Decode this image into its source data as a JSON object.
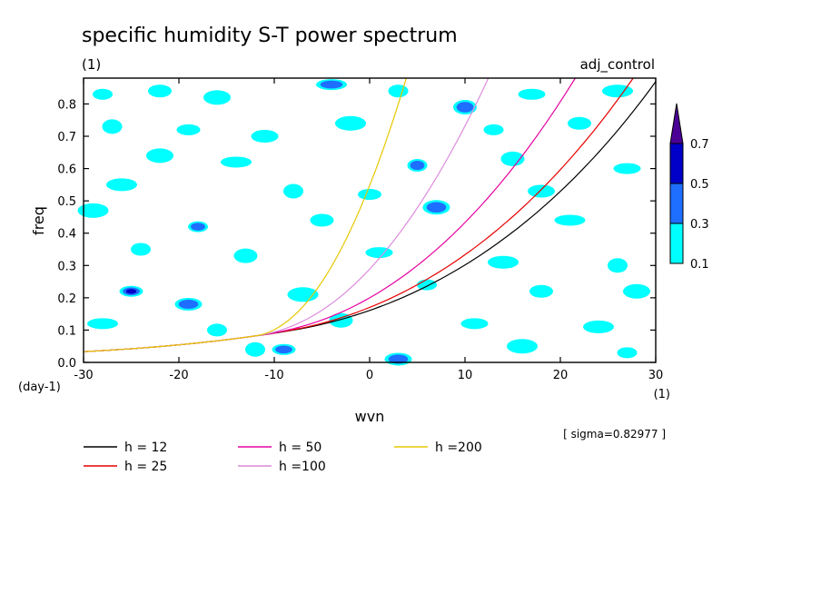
{
  "chart_data": {
    "type": "heatmap",
    "title": "specific humidity S-T power spectrum",
    "subtitle_left": "(1)",
    "subtitle_right": "adj_control",
    "xlabel": "wvn",
    "ylabel": "freq",
    "x_unit_label": "(1)",
    "y_unit_label": "(day-1)",
    "xlim": [
      -30,
      30
    ],
    "ylim": [
      0,
      0.88
    ],
    "x_ticks": [
      -30,
      -20,
      -10,
      0,
      10,
      20,
      30
    ],
    "x_tick_labels": [
      "-30",
      "-20",
      "-10",
      "0",
      "10",
      "20",
      "30"
    ],
    "y_ticks": [
      0,
      0.1,
      0.2,
      0.3,
      0.4,
      0.5,
      0.6,
      0.7,
      0.8
    ],
    "y_tick_labels": [
      "0.0",
      "0.1",
      "0.2",
      "0.3",
      "0.4",
      "0.5",
      "0.6",
      "0.7",
      "0.8"
    ],
    "sigma_text": "[ sigma=0.82977 ]",
    "colorbar": {
      "levels": [
        0.1,
        0.3,
        0.5,
        0.7
      ],
      "level_labels": [
        "0.1",
        "0.3",
        "0.5",
        "0.7"
      ],
      "colors": [
        "#00ffff",
        "#1e6eff",
        "#0000c8",
        "#4b0096"
      ]
    },
    "dispersion_curves": [
      {
        "name": "h = 12",
        "h": 12,
        "color": "#000000"
      },
      {
        "name": "h = 25",
        "h": 25,
        "color": "#e60000"
      },
      {
        "name": "h = 50",
        "h": 50,
        "color": "#e600a0"
      },
      {
        "name": "h =100",
        "h": 100,
        "color": "#dc8cdc"
      },
      {
        "name": "h =200",
        "h": 200,
        "color": "#e6c800"
      }
    ],
    "contour_blobs": [
      {
        "x": -28,
        "y": 0.83,
        "level": 1
      },
      {
        "x": -22,
        "y": 0.84,
        "level": 1
      },
      {
        "x": -16,
        "y": 0.82,
        "level": 1
      },
      {
        "x": -4,
        "y": 0.86,
        "level": 2
      },
      {
        "x": 3,
        "y": 0.84,
        "level": 1
      },
      {
        "x": 10,
        "y": 0.79,
        "level": 2
      },
      {
        "x": 17,
        "y": 0.83,
        "level": 1
      },
      {
        "x": 26,
        "y": 0.84,
        "level": 1
      },
      {
        "x": -27,
        "y": 0.73,
        "level": 1
      },
      {
        "x": -19,
        "y": 0.72,
        "level": 1
      },
      {
        "x": -11,
        "y": 0.7,
        "level": 1
      },
      {
        "x": -2,
        "y": 0.74,
        "level": 1
      },
      {
        "x": 13,
        "y": 0.72,
        "level": 1
      },
      {
        "x": 22,
        "y": 0.74,
        "level": 1
      },
      {
        "x": -22,
        "y": 0.64,
        "level": 1
      },
      {
        "x": -14,
        "y": 0.62,
        "level": 1
      },
      {
        "x": 5,
        "y": 0.61,
        "level": 2
      },
      {
        "x": 15,
        "y": 0.63,
        "level": 1
      },
      {
        "x": 27,
        "y": 0.6,
        "level": 1
      },
      {
        "x": -26,
        "y": 0.55,
        "level": 1
      },
      {
        "x": -8,
        "y": 0.53,
        "level": 1
      },
      {
        "x": 0,
        "y": 0.52,
        "level": 1
      },
      {
        "x": 18,
        "y": 0.53,
        "level": 1
      },
      {
        "x": -29,
        "y": 0.47,
        "level": 1
      },
      {
        "x": -18,
        "y": 0.42,
        "level": 2
      },
      {
        "x": -5,
        "y": 0.44,
        "level": 1
      },
      {
        "x": 7,
        "y": 0.48,
        "level": 2
      },
      {
        "x": 21,
        "y": 0.44,
        "level": 1
      },
      {
        "x": -24,
        "y": 0.35,
        "level": 1
      },
      {
        "x": -13,
        "y": 0.33,
        "level": 1
      },
      {
        "x": 1,
        "y": 0.34,
        "level": 1
      },
      {
        "x": 14,
        "y": 0.31,
        "level": 1
      },
      {
        "x": 26,
        "y": 0.3,
        "level": 1
      },
      {
        "x": -25,
        "y": 0.22,
        "level": 3
      },
      {
        "x": -19,
        "y": 0.18,
        "level": 2
      },
      {
        "x": -7,
        "y": 0.21,
        "level": 1
      },
      {
        "x": 6,
        "y": 0.24,
        "level": 1
      },
      {
        "x": 18,
        "y": 0.22,
        "level": 1
      },
      {
        "x": 28,
        "y": 0.22,
        "level": 1
      },
      {
        "x": -28,
        "y": 0.12,
        "level": 1
      },
      {
        "x": -16,
        "y": 0.1,
        "level": 1
      },
      {
        "x": -3,
        "y": 0.13,
        "level": 1
      },
      {
        "x": 11,
        "y": 0.12,
        "level": 1
      },
      {
        "x": 24,
        "y": 0.11,
        "level": 1
      },
      {
        "x": -12,
        "y": 0.04,
        "level": 1
      },
      {
        "x": -9,
        "y": 0.04,
        "level": 2
      },
      {
        "x": 3,
        "y": 0.01,
        "level": 2
      },
      {
        "x": 16,
        "y": 0.05,
        "level": 1
      },
      {
        "x": 27,
        "y": 0.03,
        "level": 1
      }
    ]
  }
}
